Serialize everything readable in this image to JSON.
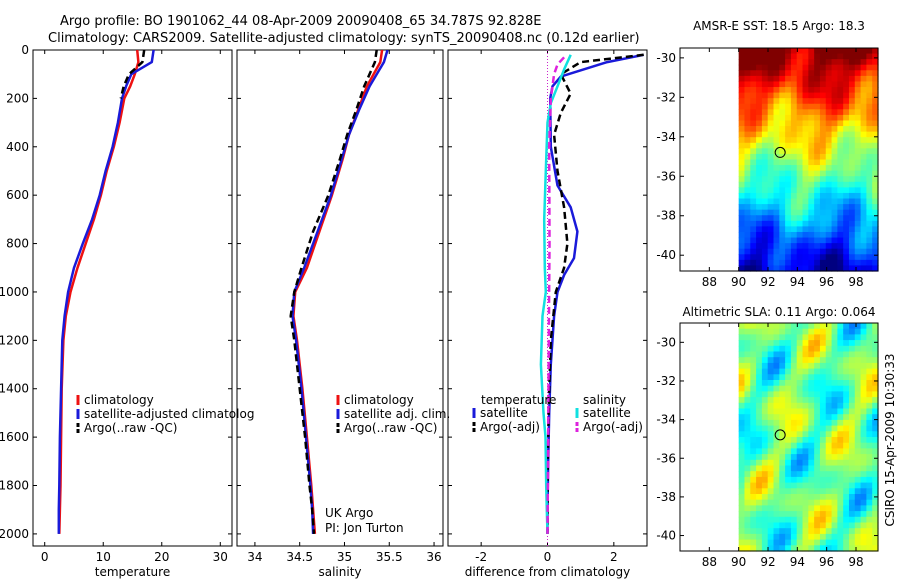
{
  "title_line1": "Argo profile: BO 1901062_44 08-Apr-2009 20090408_65 34.787S 92.828E",
  "title_line2": "Climatology: CARS2009. Satellite-adjusted climatology: synTS_20090408.nc (0.12d earlier)",
  "side_label": "CSIRO 15-Apr-2009 10:30:33",
  "credit_line1": "UK Argo",
  "credit_line2": "PI: Jon Turton",
  "colors": {
    "red": "#ee1111",
    "blue": "#1a1ad9",
    "black": "#000000",
    "cyan": "#11e0e0",
    "magenta": "#dd22dd"
  },
  "chart_data": [
    {
      "type": "line",
      "id": "temperature",
      "xlabel": "temperature",
      "xlim": [
        -2,
        32
      ],
      "ylim": [
        2050,
        0
      ],
      "xticks": [
        0,
        10,
        20,
        30
      ],
      "yticks": [
        0,
        200,
        400,
        600,
        800,
        1000,
        1200,
        1400,
        1600,
        1800,
        2000
      ],
      "legend": [
        "climatology",
        "satellite-adjusted climatolog",
        "Argo(..raw -QC)"
      ],
      "series": [
        {
          "name": "climatology",
          "color": "red",
          "dash": false,
          "x": [
            15.8,
            16.0,
            15.4,
            14.6,
            13.6,
            12.8,
            11.8,
            10.6,
            9.6,
            8.4,
            7.0,
            5.6,
            4.4,
            3.6,
            3.2,
            2.9,
            2.8,
            2.7,
            2.6,
            2.5
          ],
          "y": [
            0,
            50,
            100,
            150,
            200,
            300,
            400,
            500,
            600,
            700,
            800,
            900,
            1000,
            1100,
            1200,
            1400,
            1600,
            1800,
            1900,
            2000
          ]
        },
        {
          "name": "satellite-adjusted climatology",
          "color": "blue",
          "dash": false,
          "x": [
            18.6,
            18.3,
            14.8,
            13.9,
            13.2,
            12.5,
            11.6,
            10.4,
            9.4,
            8.1,
            6.5,
            5.0,
            4.0,
            3.4,
            3.0,
            2.8,
            2.6,
            2.5,
            2.4,
            2.4
          ],
          "y": [
            0,
            50,
            100,
            150,
            200,
            300,
            400,
            500,
            600,
            700,
            800,
            900,
            1000,
            1100,
            1200,
            1400,
            1600,
            1800,
            1900,
            2000
          ]
        },
        {
          "name": "Argo(..raw -QC)",
          "color": "black",
          "dash": true,
          "x": [
            17.0,
            16.7,
            14.4,
            13.5,
            13.0
          ],
          "y": [
            0,
            50,
            100,
            150,
            200
          ]
        }
      ]
    },
    {
      "type": "line",
      "id": "salinity",
      "xlabel": "salinity",
      "xlim": [
        33.8,
        36.1
      ],
      "ylim": [
        2050,
        0
      ],
      "xticks": [
        34,
        34.5,
        35,
        35.5,
        36
      ],
      "xticklabels": [
        "34",
        "34.5",
        "35",
        "35.5",
        "36"
      ],
      "yticks": [
        0,
        200,
        400,
        600,
        800,
        1000,
        1200,
        1400,
        1600,
        1800,
        2000
      ],
      "legend": [
        "climatology",
        "satellite adj. clim.",
        "Argo(..raw -QC)"
      ],
      "series": [
        {
          "name": "climatology",
          "color": "red",
          "dash": false,
          "x": [
            35.42,
            35.4,
            35.25,
            35.15,
            35.05,
            34.98,
            34.86,
            34.72,
            34.58,
            34.45,
            34.43,
            34.47,
            34.53,
            34.58,
            34.63,
            34.65,
            34.67
          ],
          "y": [
            0,
            50,
            150,
            250,
            350,
            450,
            600,
            750,
            900,
            1000,
            1100,
            1200,
            1400,
            1600,
            1800,
            1900,
            2000
          ]
        },
        {
          "name": "satellite adj. clim.",
          "color": "blue",
          "dash": false,
          "x": [
            35.48,
            35.44,
            35.28,
            35.16,
            35.05,
            34.97,
            34.85,
            34.7,
            34.55,
            34.44,
            34.42,
            34.46,
            34.52,
            34.57,
            34.62,
            34.64,
            34.65
          ],
          "y": [
            0,
            50,
            150,
            250,
            350,
            450,
            600,
            750,
            900,
            1000,
            1100,
            1200,
            1400,
            1600,
            1800,
            1900,
            2000
          ]
        },
        {
          "name": "Argo(..raw -QC)",
          "color": "black",
          "dash": true,
          "x": [
            35.36,
            35.34,
            35.22,
            35.13,
            35.03,
            34.95,
            34.82,
            34.65,
            34.52,
            34.44,
            34.4,
            34.44,
            34.5,
            34.56,
            34.61,
            34.64,
            34.66
          ],
          "y": [
            0,
            50,
            150,
            250,
            350,
            450,
            600,
            750,
            900,
            1000,
            1100,
            1200,
            1400,
            1600,
            1800,
            1900,
            2000
          ]
        }
      ]
    },
    {
      "type": "line",
      "id": "difference",
      "xlabel": "difference from climatology",
      "xlim": [
        -3,
        3
      ],
      "ylim": [
        2050,
        0
      ],
      "xticks": [
        -2,
        0,
        2
      ],
      "yticks": [
        0,
        200,
        400,
        600,
        800,
        1000,
        1200,
        1400,
        1600,
        1800,
        2000
      ],
      "legend_temperature_title": "temperature",
      "legend_salinity_title": "salinity",
      "legend_temperature": [
        "satellite",
        "Argo(-adj)"
      ],
      "legend_salinity": [
        "satellite",
        "Argo(-adj)"
      ],
      "series": [
        {
          "name": "temperature satellite",
          "color": "blue",
          "dash": false,
          "x": [
            2.9,
            1.8,
            0.4,
            0.15,
            0.08,
            0.1,
            0.3,
            0.7,
            0.9,
            0.8,
            0.5,
            0.3,
            0.2,
            0.1,
            0.05,
            0.02,
            0.0,
            0.0
          ],
          "y": [
            20,
            50,
            110,
            150,
            200,
            400,
            560,
            650,
            750,
            860,
            930,
            1000,
            1100,
            1300,
            1500,
            1700,
            1900,
            2000
          ]
        },
        {
          "name": "temperature Argo(-adj)",
          "color": "black",
          "dash": true,
          "x": [
            2.9,
            1.0,
            0.4,
            0.7,
            0.4,
            0.2,
            0.3,
            0.5,
            0.6,
            0.5,
            0.25,
            0.1,
            0.05,
            0.02,
            0.0,
            0.0
          ],
          "y": [
            20,
            50,
            100,
            180,
            260,
            350,
            500,
            650,
            800,
            900,
            1000,
            1200,
            1400,
            1600,
            1800,
            2000
          ]
        },
        {
          "name": "salinity satellite",
          "color": "cyan",
          "dash": false,
          "x": [
            0.7,
            0.5,
            0.3,
            0.1,
            0.0,
            -0.05,
            -0.1,
            -0.08,
            -0.05,
            -0.15,
            -0.2,
            -0.12,
            -0.06,
            -0.04,
            -0.02,
            0.0
          ],
          "y": [
            20,
            80,
            150,
            220,
            300,
            500,
            700,
            900,
            1000,
            1100,
            1300,
            1500,
            1600,
            1800,
            1900,
            2000
          ]
        },
        {
          "name": "salinity Argo(-adj)",
          "color": "magenta",
          "dash": true,
          "x": [
            0.5,
            0.3,
            0.2,
            0.1,
            0.05,
            0.06,
            0.04,
            0.02,
            0.0
          ],
          "y": [
            30,
            60,
            100,
            200,
            400,
            800,
            1200,
            1600,
            2000
          ]
        }
      ]
    },
    {
      "type": "heatmap",
      "id": "sst-map",
      "title": "AMSR-E SST: 18.5 Argo: 18.3",
      "xlim": [
        86,
        99.5
      ],
      "ylim": [
        -40.8,
        -29.5
      ],
      "xticks": [
        88,
        90,
        92,
        94,
        96,
        98
      ],
      "yticks": [
        -30,
        -32,
        -34,
        -36,
        -38,
        -40
      ],
      "data_x_range": [
        90,
        99.5
      ],
      "marker": {
        "lon": 92.83,
        "lat": -34.79
      }
    },
    {
      "type": "heatmap",
      "id": "sla-map",
      "title": "Altimetric SLA: 0.11 Argo: 0.064",
      "xlim": [
        86,
        99.5
      ],
      "ylim": [
        -40.8,
        -29.0
      ],
      "xticks": [
        88,
        90,
        92,
        94,
        96,
        98
      ],
      "yticks": [
        -30,
        -32,
        -34,
        -36,
        -38,
        -40
      ],
      "data_x_range": [
        90,
        99.5
      ],
      "marker": {
        "lon": 92.83,
        "lat": -34.79
      }
    }
  ]
}
